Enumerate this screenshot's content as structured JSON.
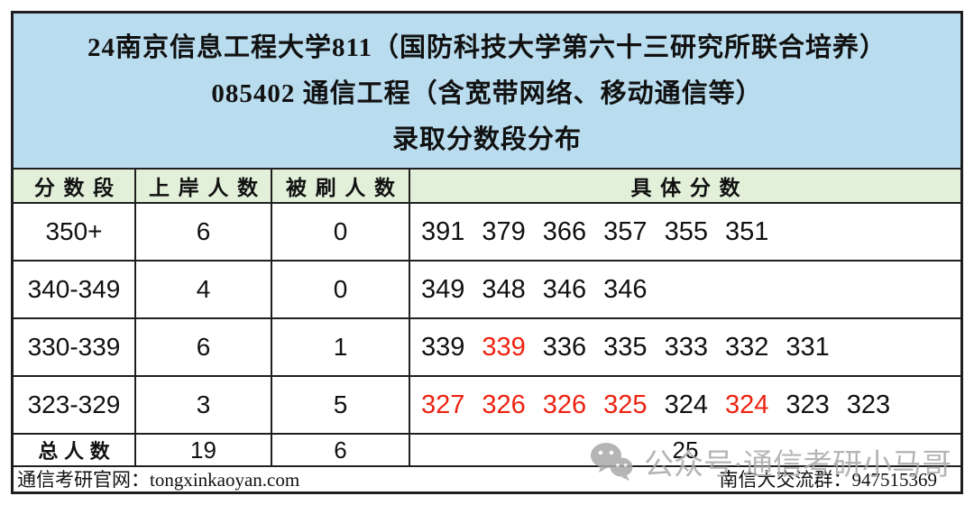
{
  "title": {
    "line1": "24南京信息工程大学811（国防科技大学第六十三研究所联合培养）",
    "line2": "085402 通信工程（含宽带网络、移动通信等）",
    "line3": "录取分数段分布"
  },
  "table": {
    "headers": [
      "分数段",
      "上岸人数",
      "被刷人数",
      "具体分数"
    ],
    "rows": [
      {
        "range": "350+",
        "admitted": "6",
        "rejected": "0",
        "scores": [
          {
            "v": "391",
            "red": false
          },
          {
            "v": "379",
            "red": false
          },
          {
            "v": "366",
            "red": false
          },
          {
            "v": "357",
            "red": false
          },
          {
            "v": "355",
            "red": false
          },
          {
            "v": "351",
            "red": false
          }
        ]
      },
      {
        "range": "340-349",
        "admitted": "4",
        "rejected": "0",
        "scores": [
          {
            "v": "349",
            "red": false
          },
          {
            "v": "348",
            "red": false
          },
          {
            "v": "346",
            "red": false
          },
          {
            "v": "346",
            "red": false
          }
        ]
      },
      {
        "range": "330-339",
        "admitted": "6",
        "rejected": "1",
        "scores": [
          {
            "v": "339",
            "red": false
          },
          {
            "v": "339",
            "red": true
          },
          {
            "v": "336",
            "red": false
          },
          {
            "v": "335",
            "red": false
          },
          {
            "v": "333",
            "red": false
          },
          {
            "v": "332",
            "red": false
          },
          {
            "v": "331",
            "red": false
          }
        ]
      },
      {
        "range": "323-329",
        "admitted": "3",
        "rejected": "5",
        "scores": [
          {
            "v": "327",
            "red": true
          },
          {
            "v": "326",
            "red": true
          },
          {
            "v": "326",
            "red": true
          },
          {
            "v": "325",
            "red": true
          },
          {
            "v": "324",
            "red": false
          },
          {
            "v": "324",
            "red": true
          },
          {
            "v": "323",
            "red": false
          },
          {
            "v": "323",
            "red": false
          }
        ]
      }
    ],
    "total": {
      "label": "总人数",
      "admitted": "19",
      "rejected": "6",
      "grand_total": "25"
    }
  },
  "footer": {
    "left": "通信考研官网：tongxinkaoyan.com",
    "right": "南信大交流群：947515369"
  },
  "watermark": {
    "icon": "wechat-icon",
    "text": "公众号·通信考研小马哥"
  },
  "colors": {
    "title_bg": "#b9dcee",
    "header_bg": "#e2f0da",
    "border": "#1f1f1f",
    "red": "#ee2211",
    "watermark": "#a9a9a9"
  }
}
